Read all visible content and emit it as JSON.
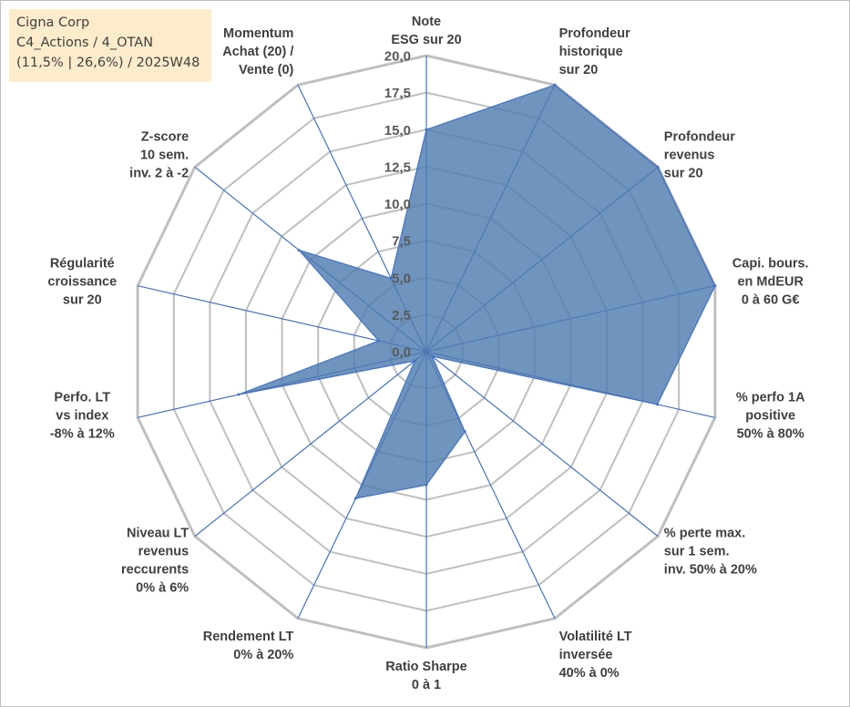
{
  "header": {
    "line1": "Cigna Corp",
    "line2": "C4_Actions / 4_OTAN",
    "line3": "(11,5% | 26,6%) / 2025W48"
  },
  "colors": {
    "fill": "#4f7cb0",
    "stroke": "#4472c4",
    "grid": "#bfbfbf",
    "spoke": "#4472c4",
    "title_bg": "#fdeccb"
  },
  "chart_data": {
    "type": "radar",
    "title": "Cigna Corp",
    "rlim": [
      0,
      20
    ],
    "rticks": [
      "0,0",
      "2,5",
      "5,0",
      "7,5",
      "10,0",
      "12,5",
      "15,0",
      "17,5",
      "20,0"
    ],
    "axes": [
      [
        "Note",
        "ESG sur 20"
      ],
      [
        "Profondeur",
        "historique",
        "sur 20"
      ],
      [
        "Profondeur",
        "revenus",
        "sur 20"
      ],
      [
        "Capi. bours.",
        "en MdEUR",
        "0 à 60 G€"
      ],
      [
        "% perfo 1A",
        "positive",
        "50% à 80%"
      ],
      [
        "% perte max.",
        "sur 1 sem.",
        "inv. 50% à 20%"
      ],
      [
        "Volatilité LT",
        "inversée",
        "40% à 0%"
      ],
      [
        "Ratio Sharpe",
        "0 à 1"
      ],
      [
        "Rendement LT",
        "0% à 20%"
      ],
      [
        "Niveau LT",
        "revenus",
        "reccurents",
        "0% à 6%"
      ],
      [
        "Perfo. LT",
        "vs index",
        "-8% à 12%"
      ],
      [
        "Régularité",
        "croissance",
        "sur 20"
      ],
      [
        "Z-score",
        "10 sem.",
        "inv. 2 à -2"
      ],
      [
        "Momentum",
        "Achat (20) /",
        "Vente (0)"
      ]
    ],
    "series": [
      {
        "name": "Cigna Corp",
        "values": [
          15.0,
          20.0,
          20.0,
          20.0,
          16.0,
          0.5,
          6.0,
          9.0,
          11.0,
          1.0,
          13.0,
          3.3,
          11.0,
          5.5
        ]
      }
    ]
  }
}
